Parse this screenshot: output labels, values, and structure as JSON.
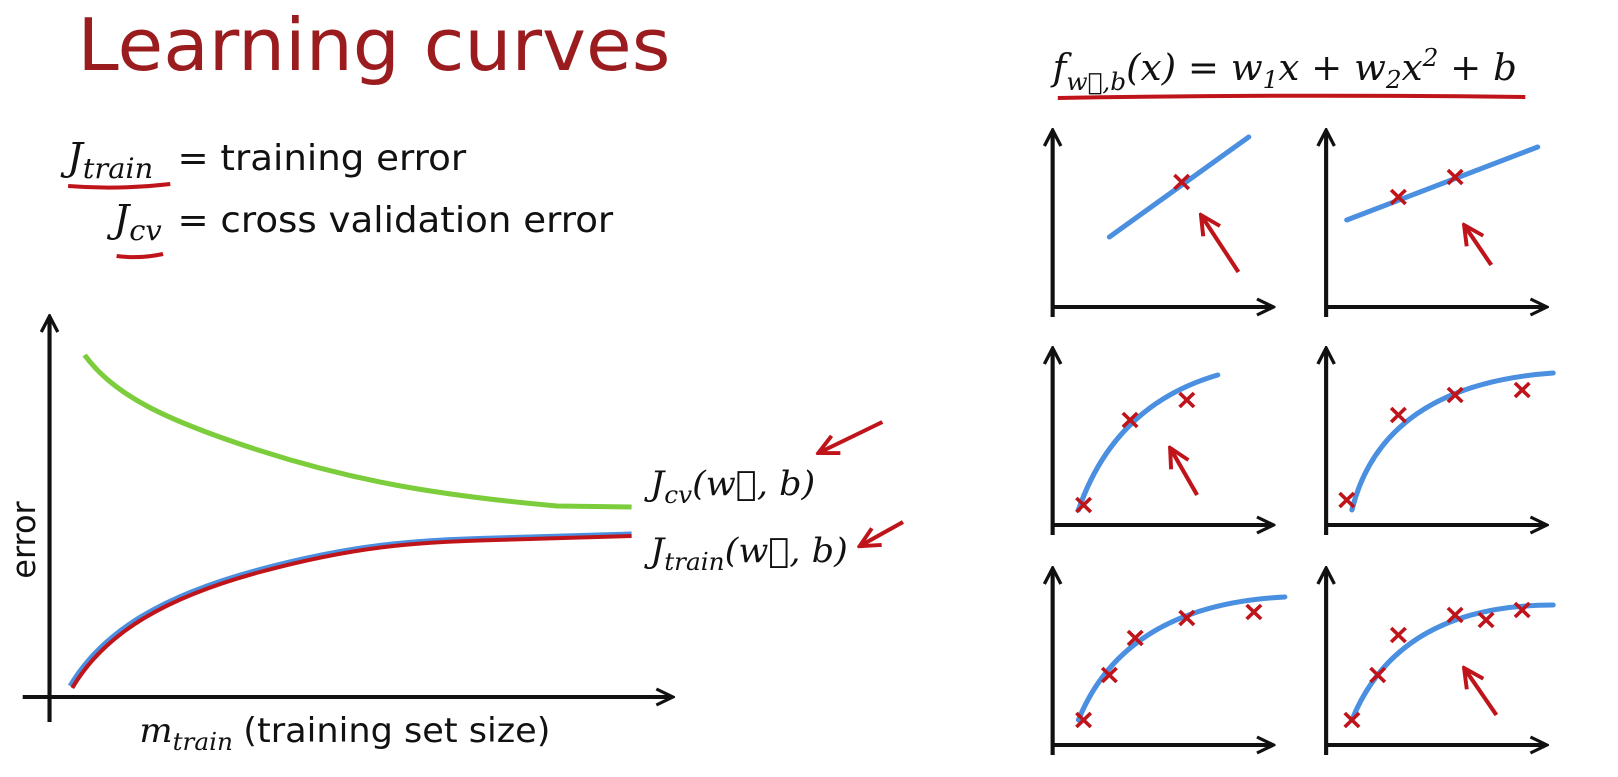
{
  "title": "Learning curves",
  "definitions": [
    {
      "symbol": "J",
      "subscript": "train",
      "text": "= training error"
    },
    {
      "symbol": "J",
      "subscript": "cv",
      "text": "= cross validation error"
    }
  ],
  "plot": {
    "y_label": "error",
    "x_label": {
      "symbol": "m",
      "subscript": "train",
      "text": "(training set size)"
    },
    "curves": [
      {
        "symbol": "J",
        "subscript": "cv",
        "args": "(w⃗, b)"
      },
      {
        "symbol": "J",
        "subscript": "train",
        "args": "(w⃗, b)"
      }
    ]
  },
  "formula": [
    "f",
    "w⃗,b",
    "(x) = w",
    "1",
    "x + w",
    "2",
    "x",
    "2",
    " + b"
  ]
}
